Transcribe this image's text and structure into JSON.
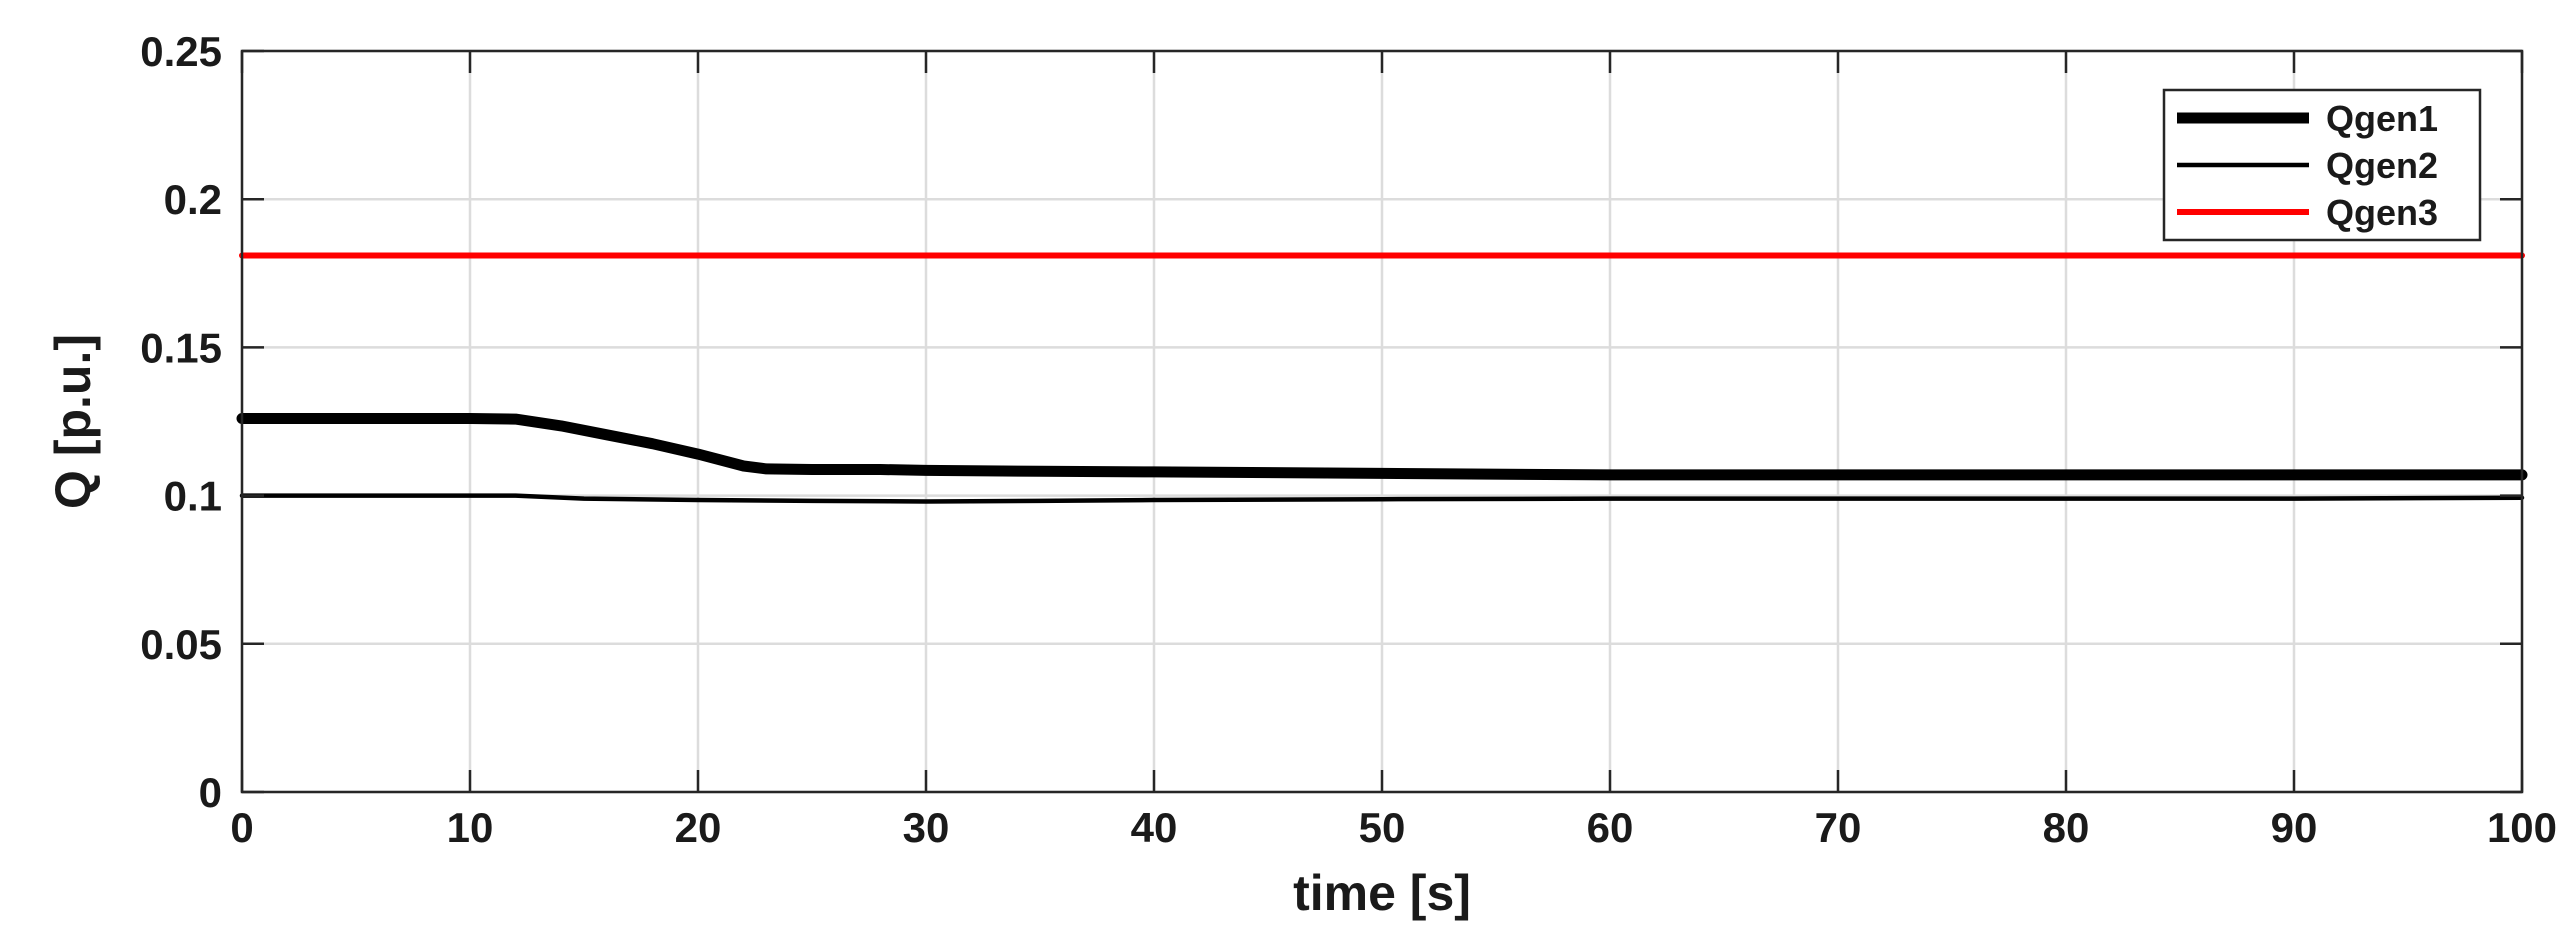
{
  "chart_data": {
    "type": "line",
    "title": "",
    "xlabel": "time [s]",
    "ylabel": "Q [p.u.]",
    "xlim": [
      0,
      100
    ],
    "ylim": [
      0,
      0.25
    ],
    "xticks": [
      0,
      10,
      20,
      30,
      40,
      50,
      60,
      70,
      80,
      90,
      100
    ],
    "yticks": [
      0,
      0.05,
      0.1,
      0.15,
      0.2,
      0.25
    ],
    "xtick_labels": [
      "0",
      "10",
      "20",
      "30",
      "40",
      "50",
      "60",
      "70",
      "80",
      "90",
      "100"
    ],
    "ytick_labels": [
      "0",
      "0.05",
      "0.1",
      "0.15",
      "0.2",
      "0.25"
    ],
    "grid": true,
    "legend_position": "top-right",
    "series": [
      {
        "name": "Qgen1",
        "color": "#000000",
        "style": "thick",
        "x": [
          0,
          5,
          10,
          12,
          14,
          16,
          18,
          20,
          22,
          23,
          25,
          28,
          30,
          35,
          40,
          50,
          60,
          70,
          80,
          90,
          100
        ],
        "y": [
          0.126,
          0.126,
          0.126,
          0.1258,
          0.1235,
          0.1205,
          0.1175,
          0.114,
          0.11,
          0.109,
          0.1088,
          0.1088,
          0.1085,
          0.1082,
          0.108,
          0.1075,
          0.107,
          0.107,
          0.107,
          0.107,
          0.107
        ]
      },
      {
        "name": "Qgen2",
        "color": "#000000",
        "style": "thin",
        "x": [
          0,
          10,
          12,
          15,
          20,
          25,
          30,
          35,
          40,
          50,
          60,
          70,
          80,
          90,
          100
        ],
        "y": [
          0.1,
          0.1,
          0.1,
          0.099,
          0.0985,
          0.0982,
          0.098,
          0.0982,
          0.0985,
          0.0988,
          0.099,
          0.099,
          0.099,
          0.099,
          0.0993
        ]
      },
      {
        "name": "Qgen3",
        "color": "#ff0000",
        "style": "normal",
        "x": [
          0,
          100
        ],
        "y": [
          0.181,
          0.181
        ]
      }
    ]
  }
}
